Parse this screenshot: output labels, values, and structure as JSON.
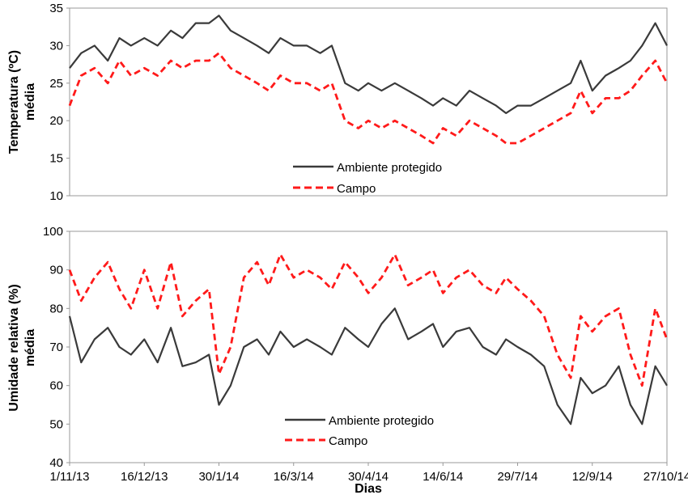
{
  "chart_data": [
    {
      "type": "line",
      "ylabel": [
        "Temperatura (ºC)",
        "média"
      ],
      "ylim": [
        10,
        35
      ],
      "yticks": [
        10,
        15,
        20,
        25,
        30,
        35
      ],
      "xlim": [
        "1/11/13",
        "27/10/14"
      ],
      "x_tick_labels": [],
      "legend_position": "bottom-center",
      "series": [
        {
          "name": "Ambiente protegido",
          "color": "#3a3a3a",
          "style": "solid",
          "x": [
            "1/11/13",
            "8/11/13",
            "16/11/13",
            "24/11/13",
            "1/12/13",
            "8/12/13",
            "16/12/13",
            "24/12/13",
            "1/1/14",
            "8/1/14",
            "16/1/14",
            "24/1/14",
            "30/1/14",
            "6/2/14",
            "14/2/14",
            "22/2/14",
            "1/3/14",
            "8/3/14",
            "16/3/14",
            "24/3/14",
            "1/4/14",
            "8/4/14",
            "16/4/14",
            "24/4/14",
            "30/4/14",
            "8/5/14",
            "16/5/14",
            "24/5/14",
            "1/6/14",
            "8/6/14",
            "14/6/14",
            "22/6/14",
            "30/6/14",
            "8/7/14",
            "16/7/14",
            "22/7/14",
            "29/7/14",
            "6/8/14",
            "14/8/14",
            "22/8/14",
            "30/8/14",
            "5/9/14",
            "12/9/14",
            "20/9/14",
            "28/9/14",
            "5/10/14",
            "12/10/14",
            "20/10/14",
            "27/10/14"
          ],
          "values": [
            27,
            29,
            30,
            28,
            31,
            30,
            31,
            30,
            32,
            31,
            33,
            33,
            34,
            32,
            31,
            30,
            29,
            31,
            30,
            30,
            29,
            30,
            25,
            24,
            25,
            24,
            25,
            24,
            23,
            22,
            23,
            22,
            24,
            23,
            22,
            21,
            22,
            22,
            23,
            24,
            25,
            28,
            24,
            26,
            27,
            28,
            30,
            33,
            30
          ]
        },
        {
          "name": "Campo",
          "color": "#ff1a1a",
          "style": "dashed",
          "x": [
            "1/11/13",
            "8/11/13",
            "16/11/13",
            "24/11/13",
            "1/12/13",
            "8/12/13",
            "16/12/13",
            "24/12/13",
            "1/1/14",
            "8/1/14",
            "16/1/14",
            "24/1/14",
            "30/1/14",
            "6/2/14",
            "14/2/14",
            "22/2/14",
            "1/3/14",
            "8/3/14",
            "16/3/14",
            "24/3/14",
            "1/4/14",
            "8/4/14",
            "16/4/14",
            "24/4/14",
            "30/4/14",
            "8/5/14",
            "16/5/14",
            "24/5/14",
            "1/6/14",
            "8/6/14",
            "14/6/14",
            "22/6/14",
            "30/6/14",
            "8/7/14",
            "16/7/14",
            "22/7/14",
            "29/7/14",
            "6/8/14",
            "14/8/14",
            "22/8/14",
            "30/8/14",
            "5/9/14",
            "12/9/14",
            "20/9/14",
            "28/9/14",
            "5/10/14",
            "12/10/14",
            "20/10/14",
            "27/10/14"
          ],
          "values": [
            22,
            26,
            27,
            25,
            28,
            26,
            27,
            26,
            28,
            27,
            28,
            28,
            29,
            27,
            26,
            25,
            24,
            26,
            25,
            25,
            24,
            25,
            20,
            19,
            20,
            19,
            20,
            19,
            18,
            17,
            19,
            18,
            20,
            19,
            18,
            17,
            17,
            18,
            19,
            20,
            21,
            24,
            21,
            23,
            23,
            24,
            26,
            28,
            25
          ]
        }
      ]
    },
    {
      "type": "line",
      "xlabel": "Dias",
      "ylabel": [
        "Umidade relativa (%)",
        "média"
      ],
      "ylim": [
        40,
        100
      ],
      "yticks": [
        40,
        50,
        60,
        70,
        80,
        90,
        100
      ],
      "xlim": [
        "1/11/13",
        "27/10/14"
      ],
      "x_tick_labels": [
        "1/11/13",
        "16/12/13",
        "30/1/14",
        "16/3/14",
        "30/4/14",
        "14/6/14",
        "29/7/14",
        "12/9/14",
        "27/10/14"
      ],
      "legend_position": "bottom-center",
      "series": [
        {
          "name": "Ambiente protegido",
          "color": "#3a3a3a",
          "style": "solid",
          "x": [
            "1/11/13",
            "8/11/13",
            "16/11/13",
            "24/11/13",
            "1/12/13",
            "8/12/13",
            "16/12/13",
            "24/12/13",
            "1/1/14",
            "8/1/14",
            "16/1/14",
            "24/1/14",
            "30/1/14",
            "6/2/14",
            "14/2/14",
            "22/2/14",
            "1/3/14",
            "8/3/14",
            "16/3/14",
            "24/3/14",
            "1/4/14",
            "8/4/14",
            "16/4/14",
            "24/4/14",
            "30/4/14",
            "8/5/14",
            "16/5/14",
            "24/5/14",
            "1/6/14",
            "8/6/14",
            "14/6/14",
            "22/6/14",
            "30/6/14",
            "8/7/14",
            "16/7/14",
            "22/7/14",
            "29/7/14",
            "6/8/14",
            "14/8/14",
            "22/8/14",
            "30/8/14",
            "5/9/14",
            "12/9/14",
            "20/9/14",
            "28/9/14",
            "5/10/14",
            "12/10/14",
            "20/10/14",
            "27/10/14"
          ],
          "values": [
            78,
            66,
            72,
            75,
            70,
            68,
            72,
            66,
            75,
            65,
            66,
            68,
            55,
            60,
            70,
            72,
            68,
            74,
            70,
            72,
            70,
            68,
            75,
            72,
            70,
            76,
            80,
            72,
            74,
            76,
            70,
            74,
            75,
            70,
            68,
            72,
            70,
            68,
            65,
            55,
            50,
            62,
            58,
            60,
            65,
            55,
            50,
            65,
            60
          ]
        },
        {
          "name": "Campo",
          "color": "#ff1a1a",
          "style": "dashed",
          "x": [
            "1/11/13",
            "8/11/13",
            "16/11/13",
            "24/11/13",
            "1/12/13",
            "8/12/13",
            "16/12/13",
            "24/12/13",
            "1/1/14",
            "8/1/14",
            "16/1/14",
            "24/1/14",
            "30/1/14",
            "6/2/14",
            "14/2/14",
            "22/2/14",
            "1/3/14",
            "8/3/14",
            "16/3/14",
            "24/3/14",
            "1/4/14",
            "8/4/14",
            "16/4/14",
            "24/4/14",
            "30/4/14",
            "8/5/14",
            "16/5/14",
            "24/5/14",
            "1/6/14",
            "8/6/14",
            "14/6/14",
            "22/6/14",
            "30/6/14",
            "8/7/14",
            "16/7/14",
            "22/7/14",
            "29/7/14",
            "6/8/14",
            "14/8/14",
            "22/8/14",
            "30/8/14",
            "5/9/14",
            "12/9/14",
            "20/9/14",
            "28/9/14",
            "5/10/14",
            "12/10/14",
            "20/10/14",
            "27/10/14"
          ],
          "values": [
            90,
            82,
            88,
            92,
            85,
            80,
            90,
            80,
            92,
            78,
            82,
            85,
            63,
            70,
            88,
            92,
            86,
            94,
            88,
            90,
            88,
            85,
            92,
            88,
            84,
            88,
            94,
            86,
            88,
            90,
            84,
            88,
            90,
            86,
            84,
            88,
            85,
            82,
            78,
            68,
            62,
            78,
            74,
            78,
            80,
            68,
            60,
            80,
            72
          ]
        }
      ]
    }
  ]
}
